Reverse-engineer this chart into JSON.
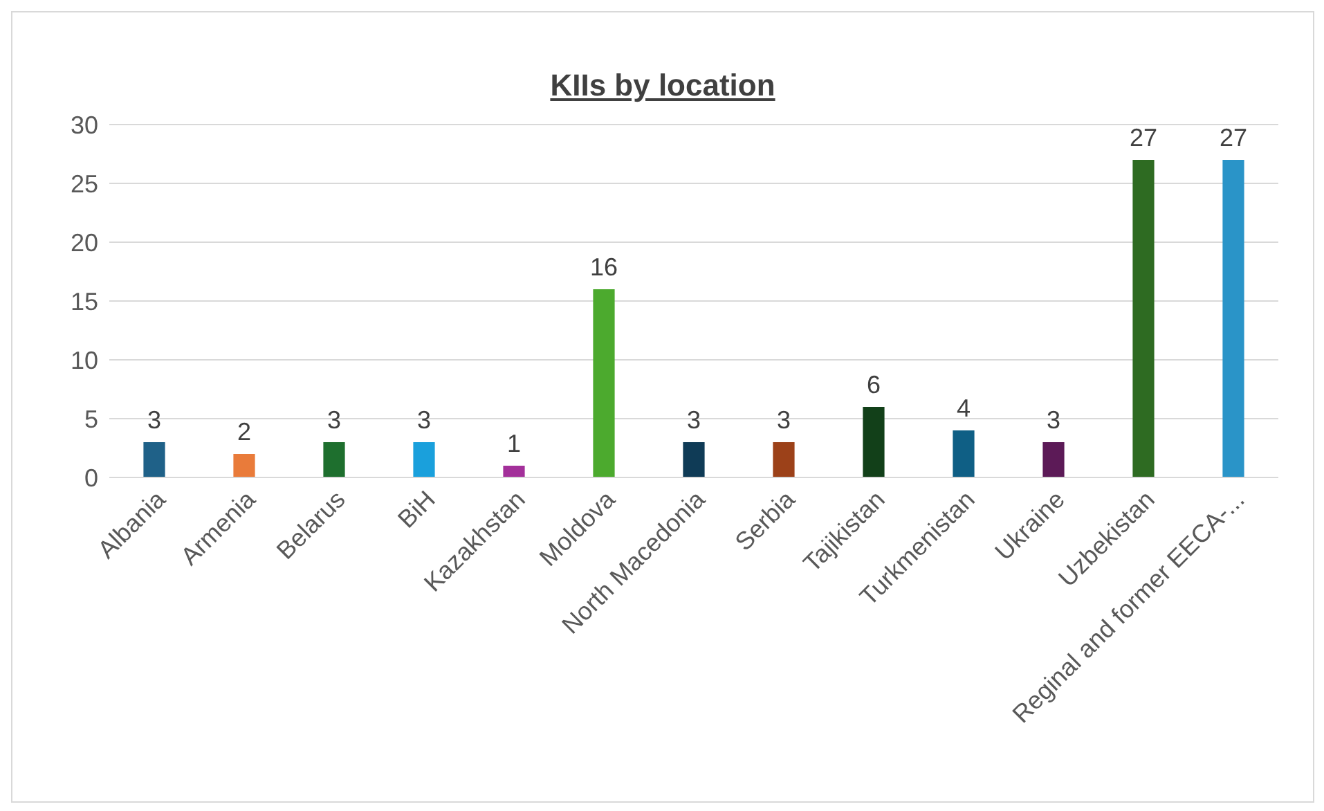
{
  "chart_data": {
    "type": "bar",
    "title": "KIIs by location",
    "categories": [
      "Albania",
      "Armenia",
      "Belarus",
      "BiH",
      "Kazakhstan",
      "Moldova",
      "North Macedonia",
      "Serbia",
      "Tajikistan",
      "Turkmenistan",
      "Ukraine",
      "Uzbekistan",
      "Reginal and former EECA-..."
    ],
    "values": [
      3,
      2,
      3,
      3,
      1,
      16,
      3,
      3,
      6,
      4,
      3,
      27,
      27
    ],
    "colors": [
      "#1f6188",
      "#e97b3a",
      "#1e6f2e",
      "#1aa0dc",
      "#a3309a",
      "#4caa2e",
      "#0f3b56",
      "#9c4119",
      "#124019",
      "#0f5f85",
      "#5c1a57",
      "#2e6b22",
      "#2a94c8"
    ],
    "ylim": [
      0,
      30
    ],
    "yticks": [
      0,
      5,
      10,
      15,
      20,
      25,
      30
    ],
    "grid": "y",
    "data_labels": true
  }
}
